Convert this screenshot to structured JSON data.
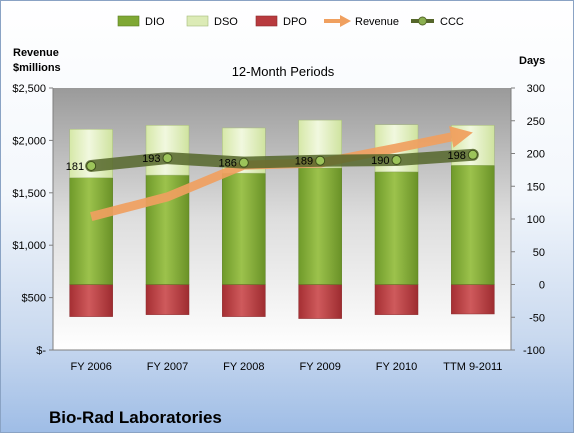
{
  "chart_data": {
    "type": "bar",
    "subtitle": "12-Month Periods",
    "company": "Bio-Rad Laboratories",
    "categories": [
      "FY 2006",
      "FY 2007",
      "FY 2008",
      "FY 2009",
      "FY 2010",
      "TTM 9-2011"
    ],
    "left_axis": {
      "title_line1": "Revenue",
      "title_line2": "$millions",
      "ylim": [
        0,
        2500
      ],
      "ticks": [
        0,
        500,
        1000,
        1500,
        2000,
        2500
      ],
      "tick_labels": [
        "$-",
        "$500",
        "$1,000",
        "$1,500",
        "$2,000",
        "$2,500"
      ]
    },
    "right_axis": {
      "title": "Days",
      "ylim": [
        -100,
        300
      ],
      "ticks": [
        -100,
        -50,
        0,
        50,
        100,
        150,
        200,
        250,
        300
      ],
      "tick_labels": [
        "-100",
        "-50",
        "0",
        "50",
        "100",
        "150",
        "200",
        "250",
        "300"
      ]
    },
    "series": [
      {
        "name": "DIO",
        "axis": "right",
        "kind": "stacked-bar",
        "color": "#7fa834",
        "values": [
          163,
          167,
          170,
          178,
          172,
          182
        ]
      },
      {
        "name": "DSO",
        "axis": "right",
        "kind": "stacked-bar",
        "color": "#dcebb6",
        "values": [
          74,
          76,
          69,
          73,
          72,
          61
        ]
      },
      {
        "name": "DPO",
        "axis": "right",
        "kind": "negative-bar",
        "color": "#b83a3e",
        "values": [
          -49,
          -46,
          -49,
          -52,
          -46,
          -45
        ]
      },
      {
        "name": "Revenue",
        "axis": "left",
        "kind": "arrow-line",
        "color": "#f0a05f",
        "values": [
          1273,
          1461,
          1764,
          1784,
          1927,
          2075
        ]
      },
      {
        "name": "CCC",
        "axis": "right",
        "kind": "line-markers",
        "color": "#55662a",
        "values": [
          181,
          193,
          186,
          189,
          190,
          198
        ]
      }
    ],
    "data_labels": [
      "181",
      "193",
      "186",
      "189",
      "190",
      "198"
    ],
    "grid": false,
    "legend_placement": "top"
  }
}
